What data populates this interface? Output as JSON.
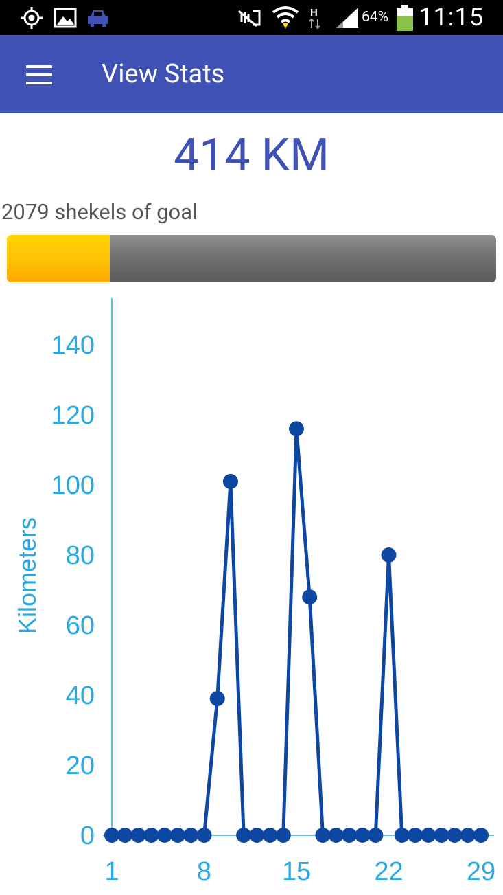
{
  "status_bar": {
    "icons": [
      "gps-icon",
      "gallery-icon",
      "car-icon",
      "mute-icon",
      "wifi-icon",
      "hspa-icon",
      "signal-icon",
      "battery-icon"
    ],
    "battery": "64%",
    "time": "11:15"
  },
  "app_bar": {
    "menu_icon": "hamburger-menu-icon",
    "title": "View Stats"
  },
  "summary": {
    "total": "414 KM",
    "goal_text": "2079 shekels of goal",
    "progress_fraction": 0.21
  },
  "colors": {
    "app_bar": "#3f51b5",
    "accent_text": "#3f51b5",
    "progress_fill": "#ffc107",
    "progress_track": "#707070",
    "axis": "#29a9e0",
    "series": "#0d47a1"
  },
  "chart_data": {
    "type": "line",
    "ylabel": "Kilometers",
    "xlabel": "",
    "ylim": [
      0,
      150
    ],
    "yticks": [
      0,
      20,
      40,
      60,
      80,
      100,
      120,
      140
    ],
    "xticks": [
      1,
      8,
      15,
      22,
      29
    ],
    "x": [
      1,
      2,
      3,
      4,
      5,
      6,
      7,
      8,
      9,
      10,
      11,
      12,
      13,
      14,
      15,
      16,
      17,
      18,
      19,
      20,
      21,
      22,
      23,
      24,
      25,
      26,
      27,
      28,
      29
    ],
    "series": [
      {
        "values": [
          0,
          0,
          0,
          0,
          0,
          0,
          0,
          0,
          39,
          101,
          0,
          0,
          0,
          0,
          116,
          68,
          0,
          0,
          0,
          0,
          0,
          80,
          0,
          0,
          0,
          0,
          0,
          0,
          0
        ]
      }
    ]
  }
}
